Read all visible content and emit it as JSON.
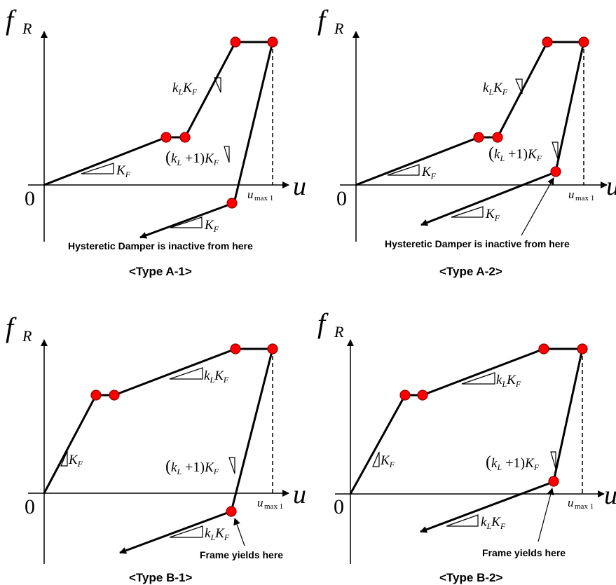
{
  "colors": {
    "line": "#000000",
    "point_fill": "#ff0000",
    "point_stroke": "#8b0000",
    "background": "#ffffff"
  },
  "labels": {
    "y_axis": "f",
    "y_axis_sub": "R",
    "x_axis": "u",
    "origin": "0",
    "umax": "u",
    "umax_sub": "max 1",
    "k_L": "k",
    "L_sub": "L",
    "K_F": "K",
    "F_sub": "F",
    "plus_one": " +1)",
    "open_paren": "("
  },
  "panels": [
    {
      "id": "a1",
      "caption": "<Type A-1>",
      "note": "Hysteretic Damper is inactive from here"
    },
    {
      "id": "a2",
      "caption": "<Type A-2>",
      "note": "Hysteretic Damper is inactive from here"
    },
    {
      "id": "b1",
      "caption": "<Type B-1>",
      "note": "Frame yields here"
    },
    {
      "id": "b2",
      "caption": "<Type B-2>",
      "note": "Frame yields here"
    }
  ]
}
